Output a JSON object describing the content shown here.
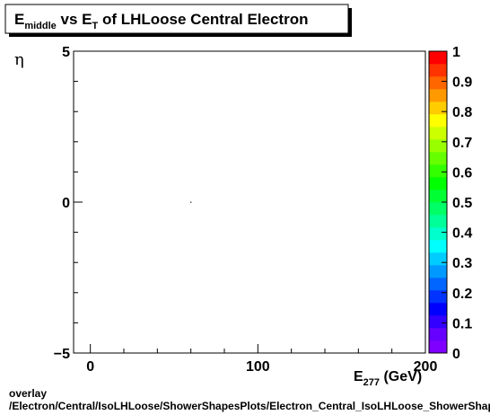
{
  "chart_data": {
    "type": "heatmap",
    "title": {
      "parts": [
        {
          "text": "E",
          "style": "normal"
        },
        {
          "text": "middle",
          "style": "sub"
        },
        {
          "text": " vs E",
          "style": "normal"
        },
        {
          "text": "T",
          "style": "sub"
        },
        {
          "text": " of LHLoose Central  Electron",
          "style": "normal"
        }
      ]
    },
    "xlabel": {
      "parts": [
        {
          "text": "E",
          "style": "normal"
        },
        {
          "text": "277",
          "style": "sub"
        },
        {
          "text": " (GeV)",
          "style": "normal"
        }
      ]
    },
    "ylabel": "η",
    "xlim": [
      -10,
      200
    ],
    "ylim": [
      -5,
      5
    ],
    "x_ticks": [
      0,
      100,
      200
    ],
    "y_ticks": [
      5,
      0,
      -5
    ],
    "y_tick_labels": [
      "5",
      "0",
      "−5"
    ],
    "x_minor_step": 20,
    "y_minor_step": 1,
    "zlim": [
      0,
      1
    ],
    "z_ticks": [
      0,
      0.1,
      0.2,
      0.3,
      0.4,
      0.5,
      0.6,
      0.7,
      0.8,
      0.9,
      1
    ],
    "z_tick_labels": [
      "0",
      "0.1",
      "0.2",
      "0.3",
      "0.4",
      "0.5",
      "0.6",
      "0.7",
      "0.8",
      "0.9",
      "1"
    ],
    "palette": [
      "#7f00ff",
      "#6600ff",
      "#3300ff",
      "#0000ff",
      "#0033ff",
      "#0066ff",
      "#0099ff",
      "#00ccff",
      "#00ffff",
      "#00ffcc",
      "#00ff99",
      "#00ff66",
      "#00ff33",
      "#00ff00",
      "#33ff00",
      "#66ff00",
      "#99ff00",
      "#ccff00",
      "#ffff00",
      "#ffcc00",
      "#ff9900",
      "#ff6600",
      "#ff3300",
      "#ff0000"
    ],
    "points": [
      {
        "x": 60,
        "y": 0.0
      }
    ],
    "grid": false
  },
  "footer": {
    "line1": "overlay",
    "line2": "/Electron/Central/IsoLHLoose/ShowerShapesPlots/Electron_Central_IsoLHLoose_ShowerShapes_E_middle_vs_Et"
  }
}
